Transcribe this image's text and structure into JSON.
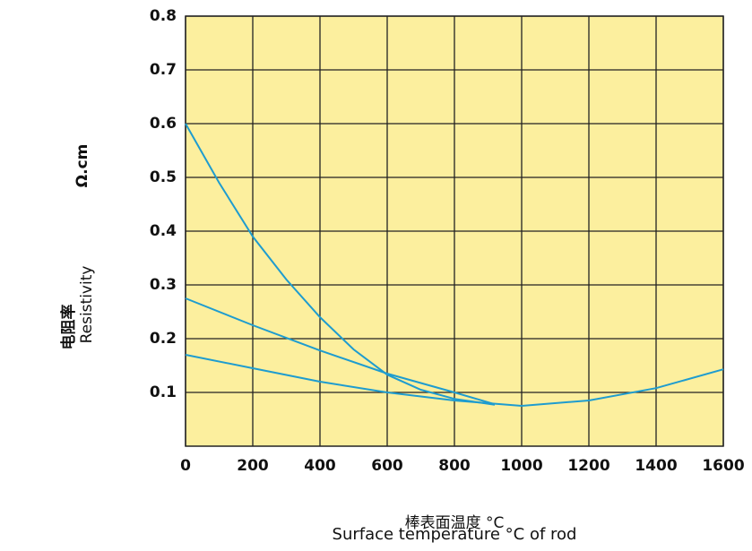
{
  "chart_data": {
    "type": "line",
    "xlabel": "棒表面温度 °C",
    "xlabel2": "Surface temperature °C of rod",
    "ylabel_cn": "电阻率",
    "ylabel": "Resistivity",
    "yunit": "Ω.cm",
    "xlim": [
      0,
      1600
    ],
    "xticks": [
      0,
      200,
      400,
      600,
      800,
      1000,
      1200,
      1400,
      1600
    ],
    "ylim": [
      0,
      0.8
    ],
    "yticks": [
      0.1,
      0.2,
      0.3,
      0.4,
      0.5,
      0.6,
      0.7,
      0.8
    ],
    "grid": true,
    "background": "#fcef9e",
    "series": [
      {
        "color": "#1e9ccf",
        "x": [
          0,
          100,
          200,
          300,
          400,
          500,
          600,
          700,
          800,
          920
        ],
        "values": [
          0.6,
          0.49,
          0.39,
          0.31,
          0.24,
          0.18,
          0.133,
          0.105,
          0.088,
          0.077
        ]
      },
      {
        "color": "#1e9ccf",
        "x": [
          0,
          200,
          400,
          600,
          800,
          920
        ],
        "values": [
          0.275,
          0.225,
          0.178,
          0.135,
          0.1,
          0.078
        ]
      },
      {
        "color": "#1e9ccf",
        "x": [
          0,
          200,
          400,
          600,
          800,
          1000,
          1200,
          1400,
          1600
        ],
        "values": [
          0.17,
          0.145,
          0.12,
          0.1,
          0.085,
          0.075,
          0.085,
          0.108,
          0.143
        ]
      }
    ]
  }
}
